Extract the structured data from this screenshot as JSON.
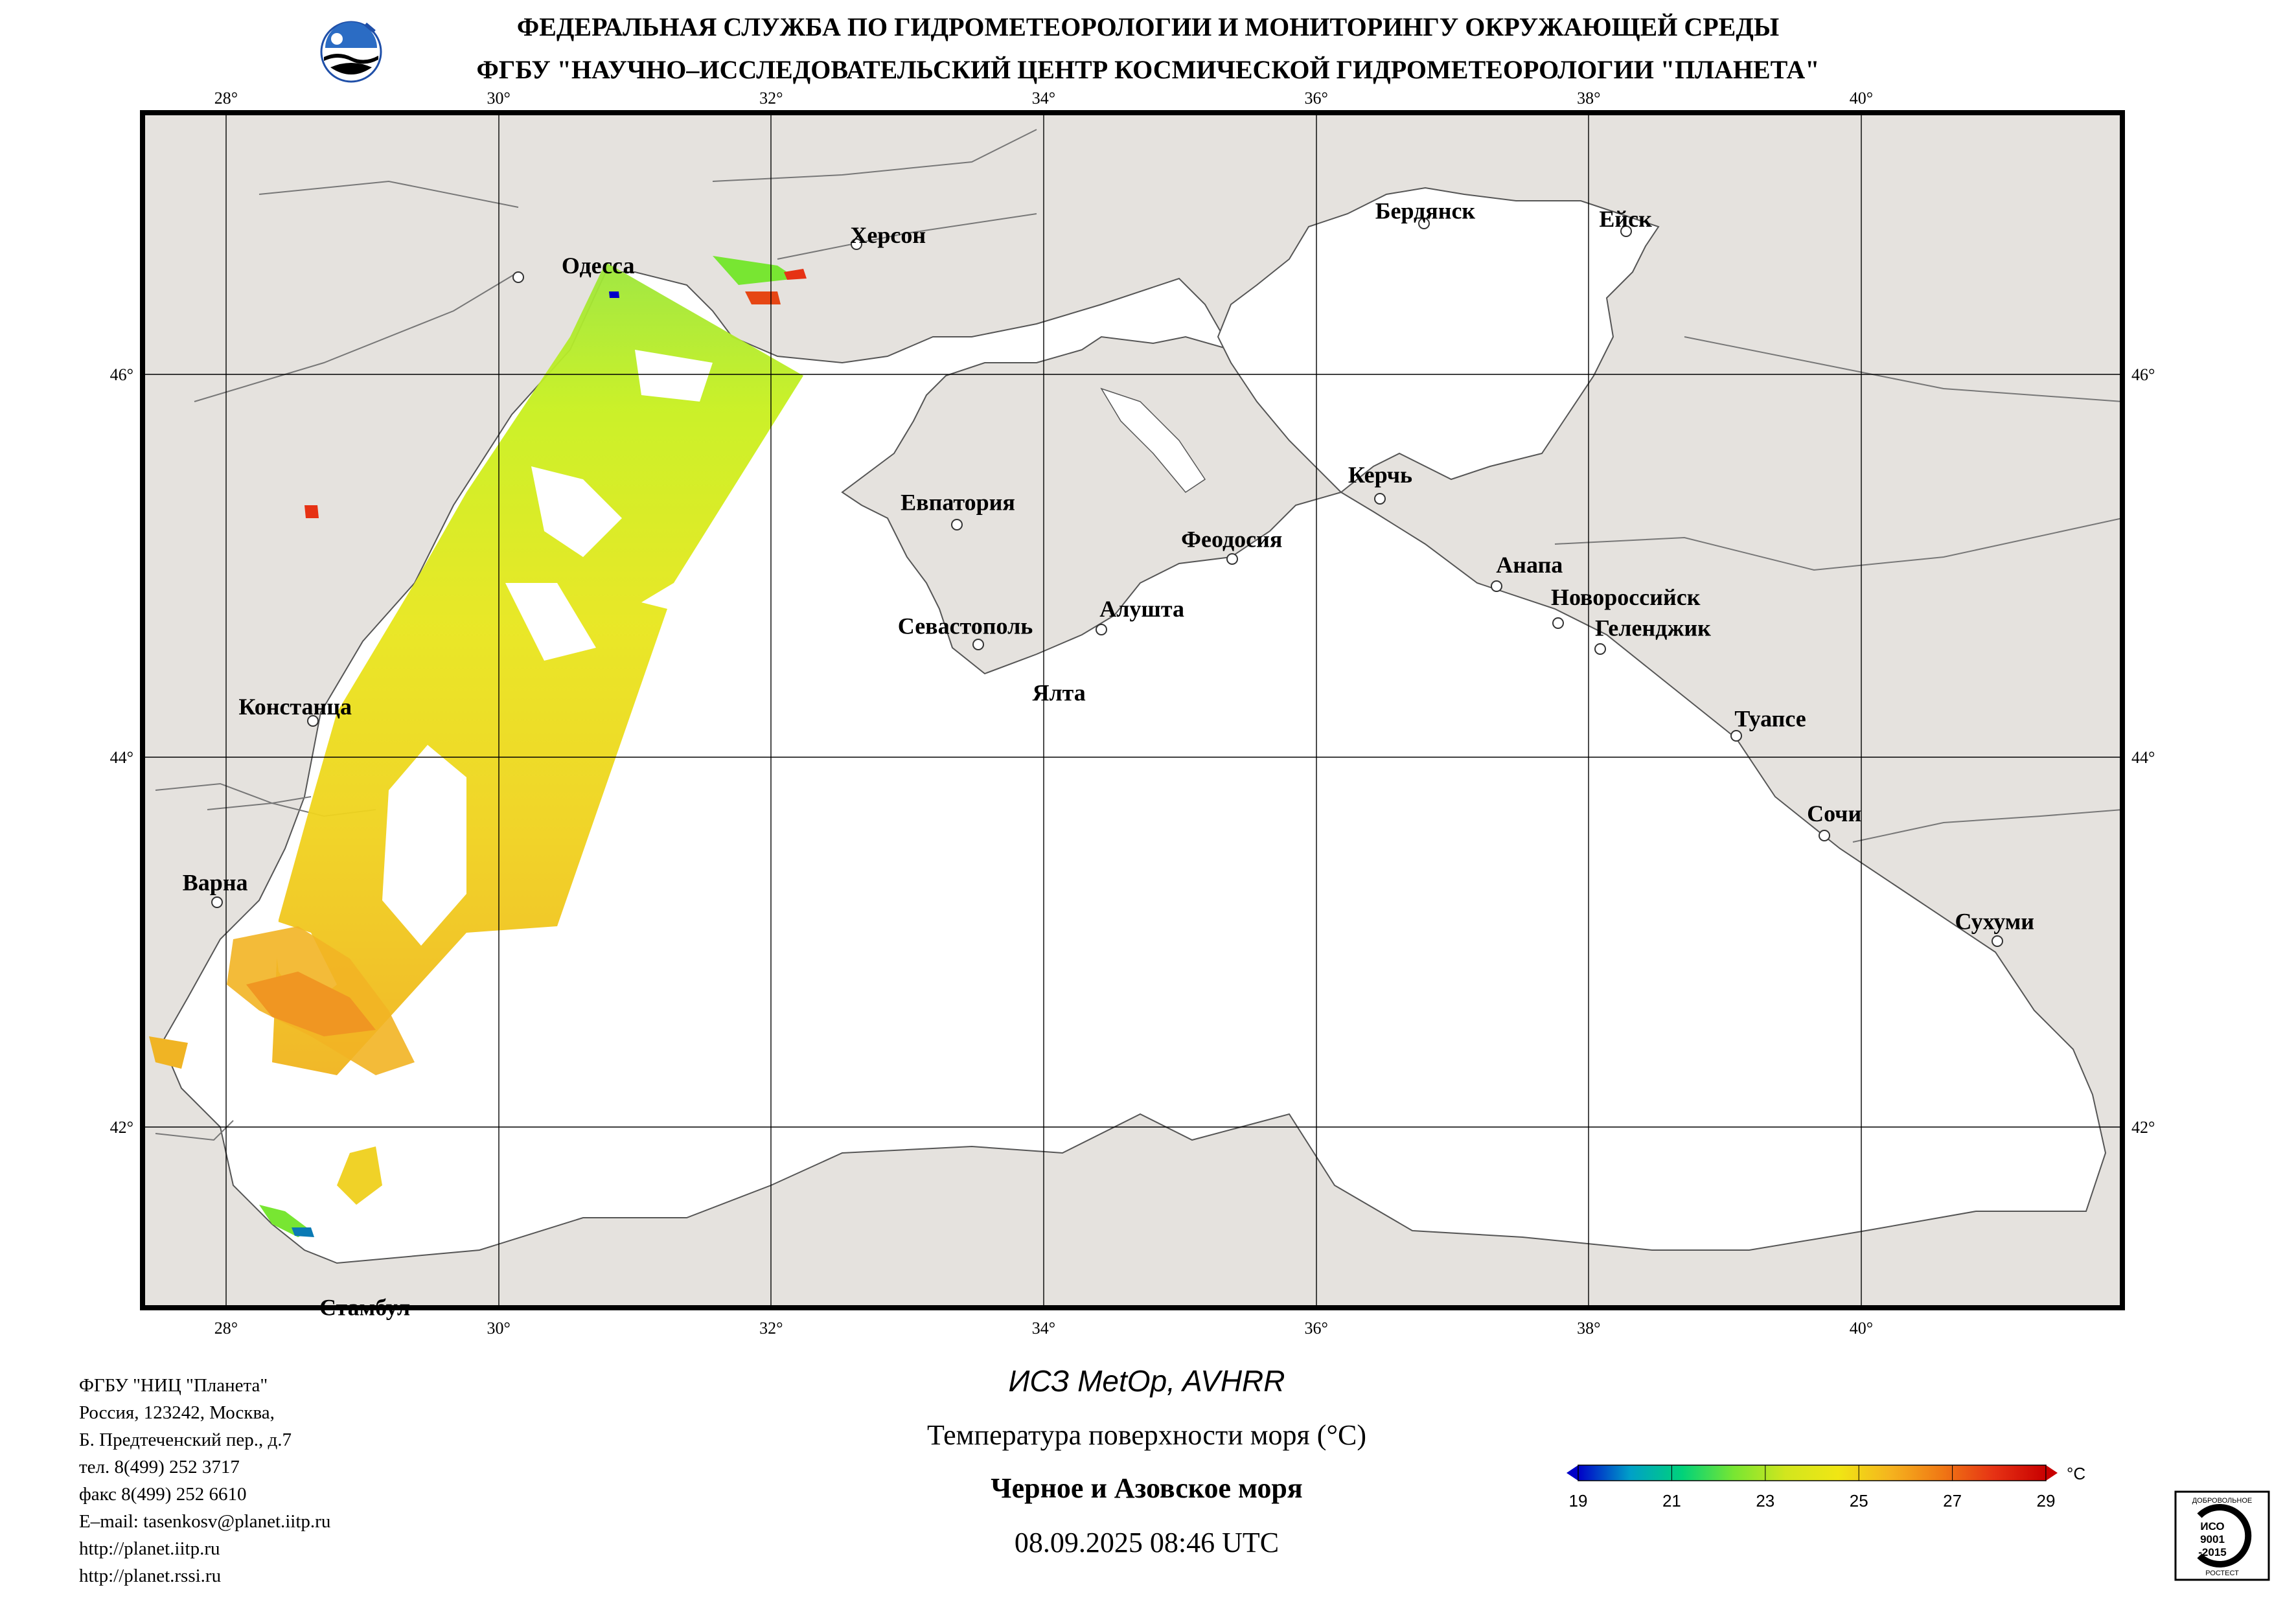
{
  "header": {
    "line1": "ФЕДЕРАЛЬНАЯ СЛУЖБА ПО ГИДРОМЕТЕОРОЛОГИИ И МОНИТОРИНГУ ОКРУЖАЮЩЕЙ СРЕДЫ",
    "line2": "ФГБУ \"НАУЧНО–ИССЛЕДОВАТЕЛЬСКИЙ ЦЕНТР КОСМИЧЕСКОЙ ГИДРОМЕТЕОРОЛОГИИ \"ПЛАНЕТА\""
  },
  "map": {
    "lon_ticks": [
      "28°",
      "30°",
      "32°",
      "34°",
      "36°",
      "38°",
      "40°"
    ],
    "lat_ticks": [
      "46°",
      "44°",
      "42°"
    ],
    "lon_range": [
      27.4,
      42.0
    ],
    "lat_range": [
      40.95,
      47.2
    ],
    "colors": {
      "land": "#e5e2de",
      "sea": "#ffffff",
      "grid": "#000000"
    },
    "cities": [
      {
        "name": "Одесса",
        "lon": 30.73,
        "lat": 46.48
      },
      {
        "name": "Херсон",
        "lon": 32.62,
        "lat": 46.64
      },
      {
        "name": "Бердянск",
        "lon": 36.8,
        "lat": 46.76
      },
      {
        "name": "Ейск",
        "lon": 38.27,
        "lat": 46.71
      },
      {
        "name": "Евпатория",
        "lon": 33.37,
        "lat": 45.19
      },
      {
        "name": "Керчь",
        "lon": 36.47,
        "lat": 45.36
      },
      {
        "name": "Феодосия",
        "lon": 35.38,
        "lat": 45.03
      },
      {
        "name": "Анапа",
        "lon": 37.32,
        "lat": 44.89
      },
      {
        "name": "Новороссийск",
        "lon": 37.77,
        "lat": 44.72
      },
      {
        "name": "Геленджик",
        "lon": 38.07,
        "lat": 44.56
      },
      {
        "name": "Алушта",
        "lon": 34.41,
        "lat": 44.68
      },
      {
        "name": "Севастополь",
        "lon": 33.52,
        "lat": 44.61
      },
      {
        "name": "Ялта",
        "lon": 34.16,
        "lat": 44.5
      },
      {
        "name": "Констанца",
        "lon": 28.65,
        "lat": 44.17
      },
      {
        "name": "Туапсе",
        "lon": 39.07,
        "lat": 44.1
      },
      {
        "name": "Сочи",
        "lon": 39.72,
        "lat": 43.59
      },
      {
        "name": "Варна",
        "lon": 27.92,
        "lat": 43.21
      },
      {
        "name": "Сухуми",
        "lon": 41.02,
        "lat": 43.0
      },
      {
        "name": "Стамбул",
        "lon": 28.97,
        "lat": 41.01
      }
    ]
  },
  "footer": {
    "satellite": "ИСЗ MetOp, AVHRR",
    "parameter": "Температура поверхности моря (°C)",
    "region": "Черное и Азовское моря",
    "datetime": "08.09.2025 08:46 UTC"
  },
  "organization": {
    "lines": [
      "ФГБУ \"НИЦ \"Планета\"",
      "Россия, 123242, Москва,",
      "Б. Предтеченский пер., д.7",
      "тел. 8(499) 252 3717",
      "факс 8(499) 252 6610",
      "E–mail: tasenkosv@planet.iitp.ru",
      "http://planet.iitp.ru",
      "http://planet.rssi.ru"
    ]
  },
  "colorbar": {
    "ticks": [
      "19",
      "21",
      "23",
      "25",
      "27",
      "29"
    ],
    "unit": "°C",
    "min": 19,
    "max": 29,
    "stops": [
      "#0000c8",
      "#00a0c8",
      "#00d27a",
      "#78e632",
      "#d2e61e",
      "#f0e614",
      "#f5b41e",
      "#f07814",
      "#e63214",
      "#c80000"
    ]
  },
  "iso_badge": {
    "top": "ДОБРОВОЛЬНОЕ",
    "lines": [
      "ИСО",
      "9001",
      "-2015"
    ],
    "bottom": "РОСТЕСТ"
  }
}
